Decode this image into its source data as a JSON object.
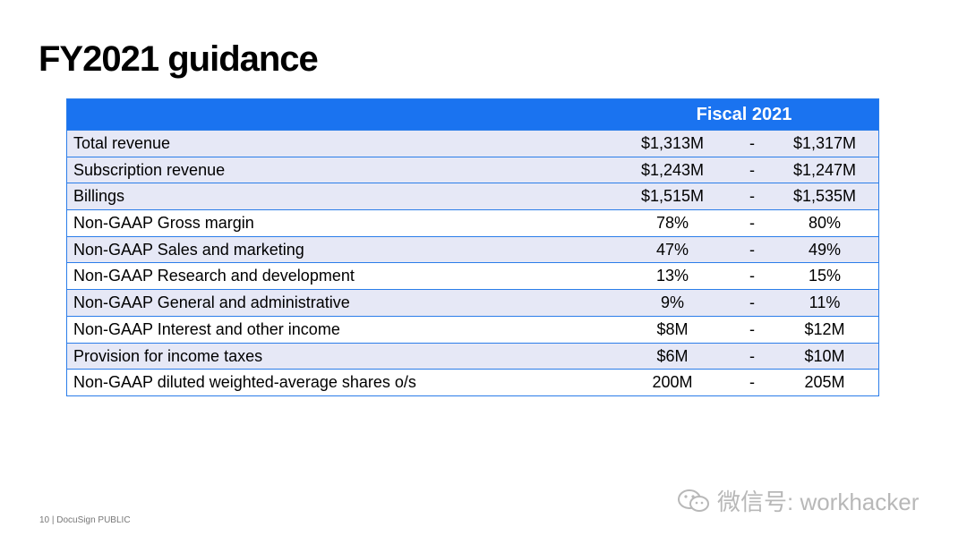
{
  "title": "FY2021 guidance",
  "table": {
    "header": "Fiscal 2021",
    "rows": [
      {
        "label": "Total revenue",
        "low": "$1,313M",
        "sep": "-",
        "high": "$1,317M",
        "shaded": true
      },
      {
        "label": "Subscription revenue",
        "low": "$1,243M",
        "sep": "-",
        "high": "$1,247M",
        "shaded": true
      },
      {
        "label": "Billings",
        "low": "$1,515M",
        "sep": "-",
        "high": "$1,535M",
        "shaded": true
      },
      {
        "label": "Non-GAAP Gross margin",
        "low": "78%",
        "sep": "-",
        "high": "80%",
        "shaded": false
      },
      {
        "label": "Non-GAAP Sales and marketing",
        "low": "47%",
        "sep": "-",
        "high": "49%",
        "shaded": true
      },
      {
        "label": "Non-GAAP Research and development",
        "low": "13%",
        "sep": "-",
        "high": "15%",
        "shaded": false
      },
      {
        "label": "Non-GAAP General and administrative",
        "low": "9%",
        "sep": "-",
        "high": "11%",
        "shaded": true
      },
      {
        "label": "Non-GAAP Interest and other income",
        "low": "$8M",
        "sep": "-",
        "high": "$12M",
        "shaded": false
      },
      {
        "label": "Provision for income taxes",
        "low": "$6M",
        "sep": "-",
        "high": "$10M",
        "shaded": true
      },
      {
        "label": "Non-GAAP diluted weighted-average shares o/s",
        "low": "200M",
        "sep": "-",
        "high": "205M",
        "shaded": false
      }
    ]
  },
  "footer": "10  |  DocuSign PUBLIC",
  "watermark": {
    "text": "微信号: workhacker",
    "icon": "wechat-icon"
  },
  "colors": {
    "header_bg": "#1a73f0",
    "border": "#2b7de9",
    "row_shade": "#e6e8f6"
  }
}
